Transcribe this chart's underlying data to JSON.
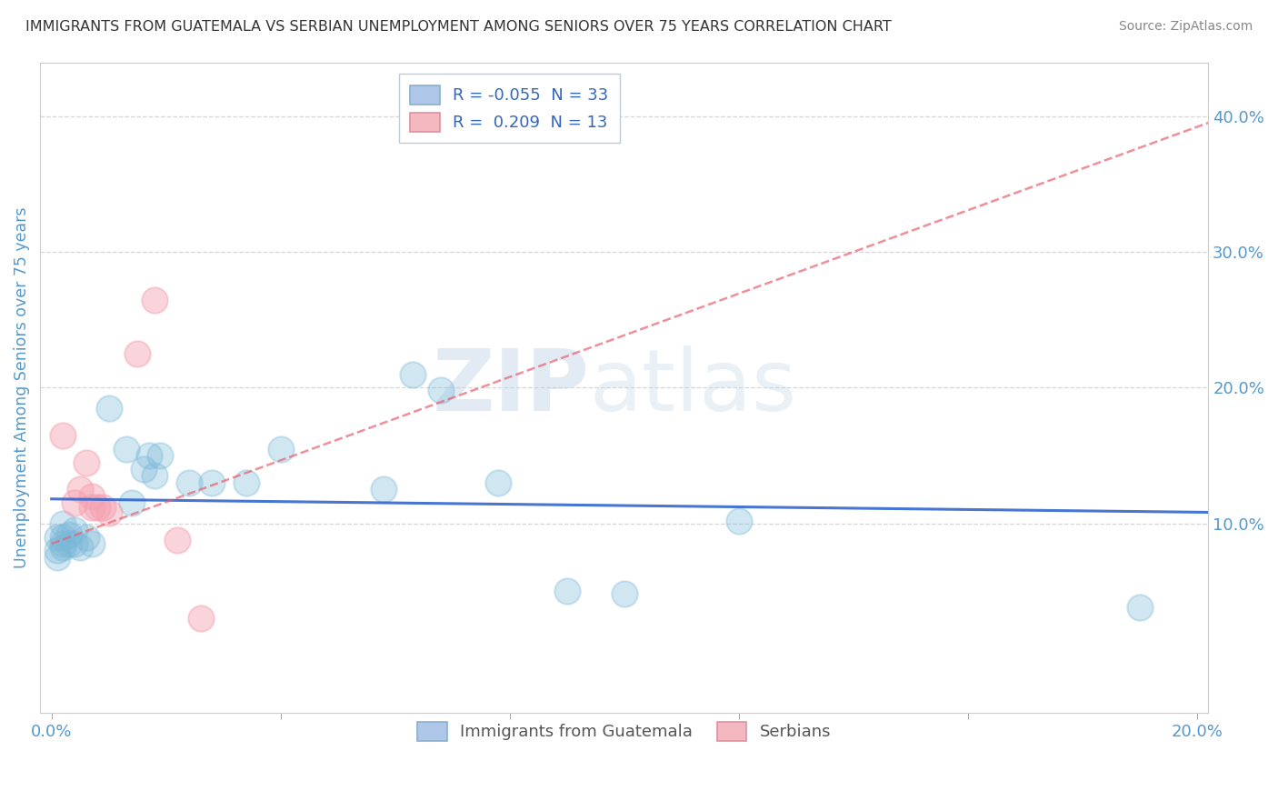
{
  "title": "IMMIGRANTS FROM GUATEMALA VS SERBIAN UNEMPLOYMENT AMONG SENIORS OVER 75 YEARS CORRELATION CHART",
  "source": "Source: ZipAtlas.com",
  "ylabel": "Unemployment Among Seniors over 75 years",
  "legend_r": [
    {
      "label": "R = -0.055  N = 33",
      "color": "#aec6e8"
    },
    {
      "label": "R =  0.209  N = 13",
      "color": "#f4b8c1"
    }
  ],
  "legend_series": [
    "Immigrants from Guatemala",
    "Serbians"
  ],
  "blue_scatter": [
    [
      0.001,
      0.09
    ],
    [
      0.001,
      0.08
    ],
    [
      0.001,
      0.075
    ],
    [
      0.002,
      0.09
    ],
    [
      0.002,
      0.085
    ],
    [
      0.002,
      0.1
    ],
    [
      0.002,
      0.082
    ],
    [
      0.003,
      0.085
    ],
    [
      0.003,
      0.092
    ],
    [
      0.004,
      0.095
    ],
    [
      0.004,
      0.085
    ],
    [
      0.005,
      0.082
    ],
    [
      0.006,
      0.09
    ],
    [
      0.007,
      0.085
    ],
    [
      0.01,
      0.185
    ],
    [
      0.013,
      0.155
    ],
    [
      0.014,
      0.115
    ],
    [
      0.016,
      0.14
    ],
    [
      0.017,
      0.15
    ],
    [
      0.018,
      0.135
    ],
    [
      0.019,
      0.15
    ],
    [
      0.024,
      0.13
    ],
    [
      0.028,
      0.13
    ],
    [
      0.034,
      0.13
    ],
    [
      0.04,
      0.155
    ],
    [
      0.058,
      0.125
    ],
    [
      0.063,
      0.21
    ],
    [
      0.068,
      0.198
    ],
    [
      0.078,
      0.13
    ],
    [
      0.09,
      0.05
    ],
    [
      0.1,
      0.048
    ],
    [
      0.12,
      0.102
    ],
    [
      0.19,
      0.038
    ]
  ],
  "pink_scatter": [
    [
      0.002,
      0.165
    ],
    [
      0.004,
      0.115
    ],
    [
      0.005,
      0.125
    ],
    [
      0.006,
      0.145
    ],
    [
      0.007,
      0.12
    ],
    [
      0.007,
      0.112
    ],
    [
      0.008,
      0.112
    ],
    [
      0.009,
      0.112
    ],
    [
      0.01,
      0.108
    ],
    [
      0.015,
      0.225
    ],
    [
      0.018,
      0.265
    ],
    [
      0.022,
      0.088
    ],
    [
      0.026,
      0.03
    ]
  ],
  "blue_line": {
    "x": [
      0.0,
      0.205
    ],
    "y": [
      0.118,
      0.108
    ]
  },
  "pink_line": {
    "x": [
      0.0,
      0.205
    ],
    "y": [
      0.085,
      0.4
    ]
  },
  "watermark_zip": "ZIP",
  "watermark_atlas": "atlas",
  "xlim": [
    -0.002,
    0.202
  ],
  "ylim": [
    -0.04,
    0.44
  ],
  "yticks": [
    0.1,
    0.2,
    0.3,
    0.4
  ],
  "ytick_labels": [
    "10.0%",
    "20.0%",
    "30.0%",
    "40.0%"
  ],
  "xticks": [
    0.0,
    0.04,
    0.08,
    0.12,
    0.16,
    0.2
  ],
  "xtick_labels": [
    "0.0%",
    "",
    "",
    "",
    "",
    "20.0%"
  ],
  "background": "#ffffff",
  "grid_color": "#cccccc",
  "title_color": "#333333",
  "axis_label_color": "#5599cc",
  "blue_color": "#7ab8d8",
  "pink_color": "#f4a0b0",
  "trend_blue_color": "#3366cc",
  "trend_pink_color": "#e86070"
}
